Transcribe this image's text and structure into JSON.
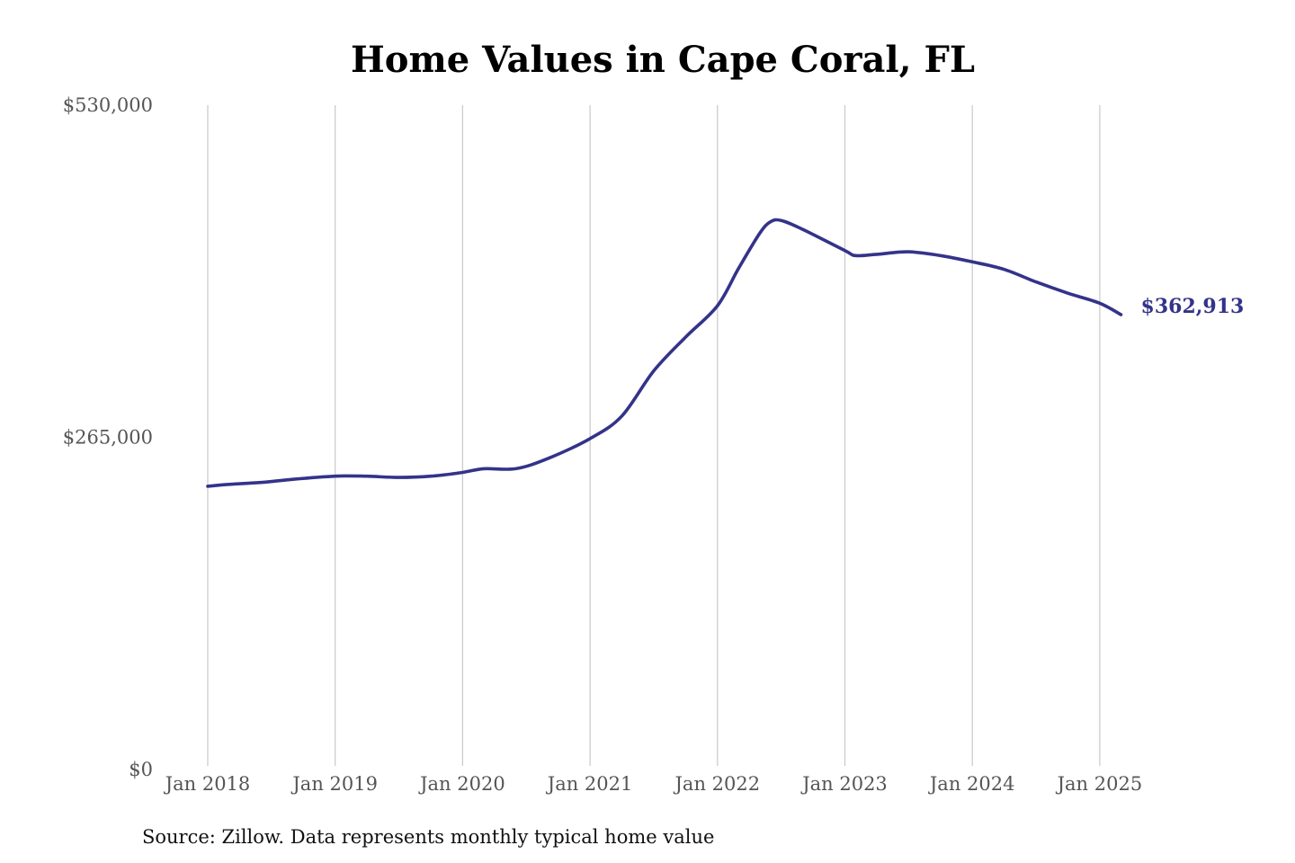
{
  "chart_data": {
    "type": "line",
    "title": "Home Values in Cape Coral, FL",
    "source": "Source: Zillow. Data represents monthly typical home value",
    "ylim": [
      0,
      530000
    ],
    "y_ticks": [
      {
        "value": 0,
        "label": "$0"
      },
      {
        "value": 265000,
        "label": "$265,000"
      },
      {
        "value": 530000,
        "label": "$530,000"
      }
    ],
    "x_ticks": [
      {
        "value": "2018-01",
        "label": "Jan 2018"
      },
      {
        "value": "2019-01",
        "label": "Jan 2019"
      },
      {
        "value": "2020-01",
        "label": "Jan 2020"
      },
      {
        "value": "2021-01",
        "label": "Jan 2021"
      },
      {
        "value": "2022-01",
        "label": "Jan 2022"
      },
      {
        "value": "2023-01",
        "label": "Jan 2023"
      },
      {
        "value": "2024-01",
        "label": "Jan 2024"
      },
      {
        "value": "2025-01",
        "label": "Jan 2025"
      }
    ],
    "grid": {
      "vertical": true,
      "horizontal": false
    },
    "end_label": "$362,913",
    "colors": {
      "line": "#34338a",
      "end_label": "#34338a"
    },
    "series": [
      {
        "points": [
          [
            "2018-01",
            226000
          ],
          [
            "2018-03",
            227500
          ],
          [
            "2018-06",
            229000
          ],
          [
            "2018-09",
            231500
          ],
          [
            "2019-01",
            234000
          ],
          [
            "2019-04",
            234000
          ],
          [
            "2019-07",
            233000
          ],
          [
            "2019-10",
            234000
          ],
          [
            "2020-01",
            237000
          ],
          [
            "2020-03",
            240000
          ],
          [
            "2020-06",
            240000
          ],
          [
            "2020-09",
            248000
          ],
          [
            "2021-01",
            264000
          ],
          [
            "2021-04",
            282000
          ],
          [
            "2021-07",
            318000
          ],
          [
            "2021-10",
            345000
          ],
          [
            "2022-01",
            370000
          ],
          [
            "2022-03",
            400000
          ],
          [
            "2022-05",
            428000
          ],
          [
            "2022-06",
            437000
          ],
          [
            "2022-07",
            438000
          ],
          [
            "2022-09",
            431000
          ],
          [
            "2023-01",
            414000
          ],
          [
            "2023-02",
            410000
          ],
          [
            "2023-04",
            411000
          ],
          [
            "2023-07",
            413000
          ],
          [
            "2023-10",
            410000
          ],
          [
            "2024-01",
            405000
          ],
          [
            "2024-04",
            399000
          ],
          [
            "2024-07",
            389000
          ],
          [
            "2024-10",
            380000
          ],
          [
            "2025-01",
            372000
          ],
          [
            "2025-03",
            362913
          ]
        ]
      }
    ]
  }
}
